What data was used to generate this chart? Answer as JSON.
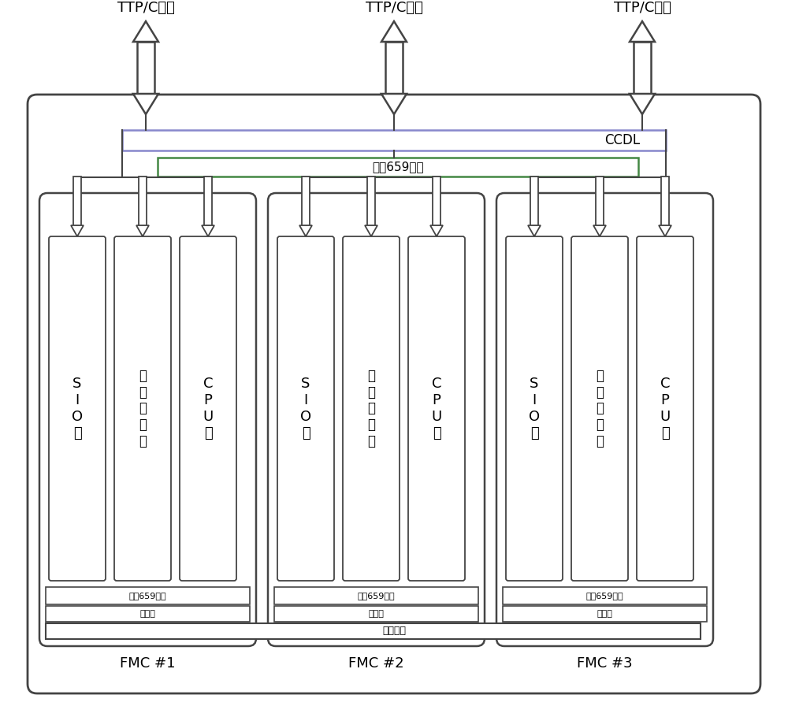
{
  "bg_color": "#ffffff",
  "fig_width": 10.0,
  "fig_height": 9.15,
  "fmc_labels": [
    "FMC #1",
    "FMC #2",
    "FMC #3"
  ],
  "ccdl_label": "CCDL",
  "bridge_label": "桥接659总线",
  "local659_label": "本地659总线",
  "power_label": "电源板",
  "backplane_label": "背板电缆",
  "ttp_label": "TTP/C总线",
  "sio_label": "S\nI\nO\n板",
  "bus_label": "总\n线\n接\n口\n板",
  "cpu_label": "C\nP\nU\n板",
  "line_color": "#444444",
  "box_color": "#444444",
  "ccdl_border": "#8888cc",
  "bridge_border": "#448844"
}
